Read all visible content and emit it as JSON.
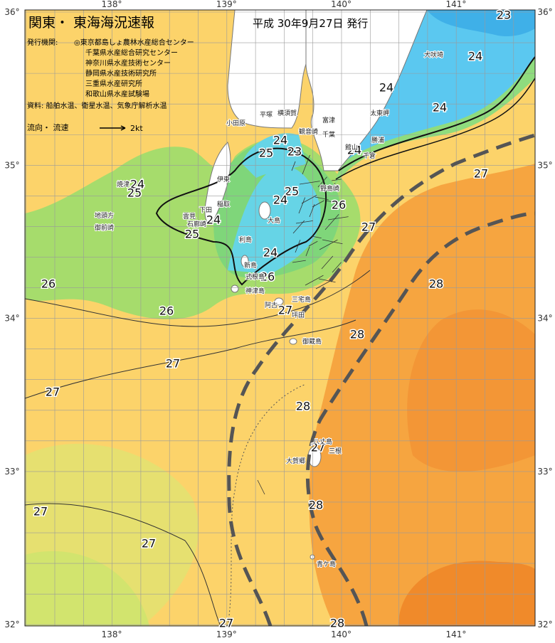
{
  "header": {
    "title": "関東・ 東海海況速報",
    "date": "平成 30年9月27日 発行"
  },
  "issuers": {
    "label": "発行機関:",
    "names": [
      "◎東京都島しょ農林水産総合センター",
      "千葉県水産総合研究センター",
      "神奈川県水産技術センター",
      "静岡県水産技術研究所",
      "三重県水産研究所",
      "和歌山県水産試験場"
    ]
  },
  "sources": "資料: 船舶水温、衛星水温、気象庁解析水温",
  "legend": {
    "label": "流向・ 流速",
    "speed": "2kt"
  },
  "axes": {
    "lon_ticks": [
      {
        "value": 138,
        "label": "138°"
      },
      {
        "value": 139,
        "label": "139°"
      },
      {
        "value": 140,
        "label": "140°"
      },
      {
        "value": 141,
        "label": "141°"
      }
    ],
    "lat_ticks": [
      {
        "value": 36,
        "label": "36°"
      },
      {
        "value": 35,
        "label": "35°"
      },
      {
        "value": 34,
        "label": "34°"
      },
      {
        "value": 33,
        "label": "33°"
      },
      {
        "value": 32,
        "label": "32°"
      }
    ]
  },
  "isotherm_labels": [
    "23",
    "24",
    "24",
    "24",
    "24",
    "27",
    "26",
    "27",
    "28",
    "28",
    "28",
    "27",
    "28",
    "28",
    "27",
    "27",
    "27",
    "27",
    "27",
    "26",
    "26",
    "27",
    "26",
    "24",
    "25",
    "24",
    "25",
    "24",
    "23",
    "24",
    "25",
    "24",
    "25"
  ],
  "places": [
    "犬吠埼",
    "太東岬",
    "勝浦",
    "千倉",
    "館山",
    "野島崎",
    "富津",
    "観音崎",
    "千葉",
    "横須賀",
    "平塚",
    "小田原",
    "伊東",
    "稲取",
    "下田",
    "石廊崎",
    "雲見",
    "焼津",
    "地頭方",
    "御前崎",
    "大島",
    "利島",
    "新島",
    "式根島",
    "神津島",
    "三宅島",
    "阿古",
    "坪田",
    "御蔵島",
    "八丈島",
    "大賀郷",
    "三根",
    "青ケ島"
  ]
}
